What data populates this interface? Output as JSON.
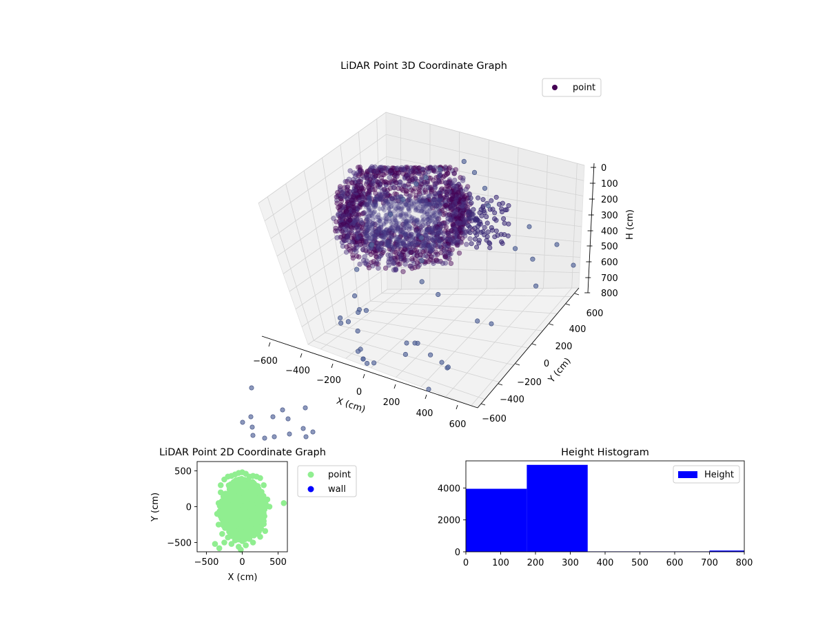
{
  "chart_data": [
    {
      "type": "scatter",
      "projection": "3d",
      "title": "LiDAR Point 3D Coordinate Graph",
      "xlabel": "X (cm)",
      "ylabel": "Y (cm)",
      "zlabel": "H (cm)",
      "xlim": [
        -700,
        650
      ],
      "ylim": [
        -700,
        700
      ],
      "zlim": [
        800,
        0
      ],
      "z_axis_inverted": true,
      "xticks": [
        "−600",
        "−400",
        "−200",
        "0",
        "200",
        "400",
        "600"
      ],
      "yticks": [
        "−600",
        "−400",
        "−200",
        "0",
        "200",
        "400",
        "600"
      ],
      "zticks": [
        "0",
        "100",
        "200",
        "300",
        "400",
        "500",
        "600",
        "700",
        "800"
      ],
      "grid": true,
      "legend": {
        "placement": "top-right",
        "entries": [
          "point"
        ]
      },
      "colormap": "viridis",
      "series": [
        {
          "name": "point",
          "color": "#440154",
          "x": [
            -600,
            -560,
            -520,
            -480,
            -450,
            -400,
            -350,
            -300,
            -250,
            -200,
            50,
            120,
            200,
            300,
            350,
            480,
            500,
            550,
            600,
            -350,
            -300,
            -420,
            -480,
            -500,
            -430,
            -380,
            -330,
            -280,
            -230,
            -150,
            0,
            100,
            200,
            250,
            -100,
            -50,
            0,
            150
          ],
          "y": [
            -350,
            -450,
            -400,
            -300,
            -250,
            -500,
            -560,
            -620,
            -660,
            -650,
            -650,
            -600,
            -560,
            -500,
            -580,
            -400,
            100,
            250,
            200,
            -600,
            -620,
            -450,
            -380,
            -300,
            -200,
            0,
            100,
            200,
            250,
            300,
            350,
            300,
            250,
            200,
            -100,
            -200,
            -300,
            -350
          ],
          "z": [
            750,
            700,
            720,
            680,
            690,
            720,
            780,
            800,
            800,
            790,
            700,
            650,
            700,
            760,
            720,
            550,
            400,
            500,
            600,
            780,
            800,
            650,
            600,
            500,
            400,
            300,
            250,
            200,
            180,
            150,
            120,
            150,
            200,
            260,
            350,
            420,
            480,
            500
          ]
        }
      ]
    },
    {
      "type": "scatter",
      "title": "LiDAR Point 2D Coordinate Graph",
      "xlabel": "X (cm)",
      "ylabel": "Y (cm)",
      "xlim": [
        -630,
        630
      ],
      "ylim": [
        -630,
        630
      ],
      "xticks": [
        -500,
        0,
        500
      ],
      "yticks": [
        -500,
        0,
        500
      ],
      "legend": {
        "placement": "outside-right",
        "entries": [
          "point",
          "wall"
        ]
      },
      "series": [
        {
          "name": "point",
          "color": "#90ee90",
          "x": [
            -300,
            -250,
            -200,
            -150,
            -100,
            -50,
            0,
            50,
            100,
            150,
            200,
            250,
            300,
            350,
            380,
            300,
            250,
            200,
            100,
            0,
            -100,
            -200,
            -280,
            -330,
            -350,
            -330,
            -300,
            -250,
            -150,
            -50,
            50,
            150,
            250,
            320,
            580,
            -380,
            -320,
            -20,
            -200,
            100
          ],
          "y": [
            300,
            380,
            420,
            430,
            450,
            470,
            480,
            460,
            420,
            430,
            420,
            400,
            300,
            100,
            0,
            -200,
            -300,
            -380,
            -450,
            -480,
            -470,
            -430,
            -380,
            -250,
            -100,
            50,
            200,
            -500,
            -520,
            -560,
            -540,
            -500,
            -420,
            -340,
            50,
            -520,
            -580,
            -600,
            0,
            0
          ]
        },
        {
          "name": "wall",
          "color": "#0000ff",
          "x": [],
          "y": []
        }
      ]
    },
    {
      "type": "bar",
      "subtype": "histogram",
      "title": "Height Histogram",
      "xlim": [
        0,
        800
      ],
      "ylim": [
        0,
        5700
      ],
      "xticks": [
        0,
        100,
        200,
        300,
        400,
        500,
        600,
        700,
        800
      ],
      "yticks": [
        0,
        2000,
        4000
      ],
      "bin_edges": [
        0,
        175,
        350,
        525,
        700,
        800
      ],
      "values": [
        3950,
        5450,
        25,
        25,
        80
      ],
      "legend": {
        "placement": "top-right",
        "entries": [
          "Height"
        ]
      },
      "series": [
        {
          "name": "Height",
          "color": "#0000ff"
        }
      ]
    }
  ]
}
